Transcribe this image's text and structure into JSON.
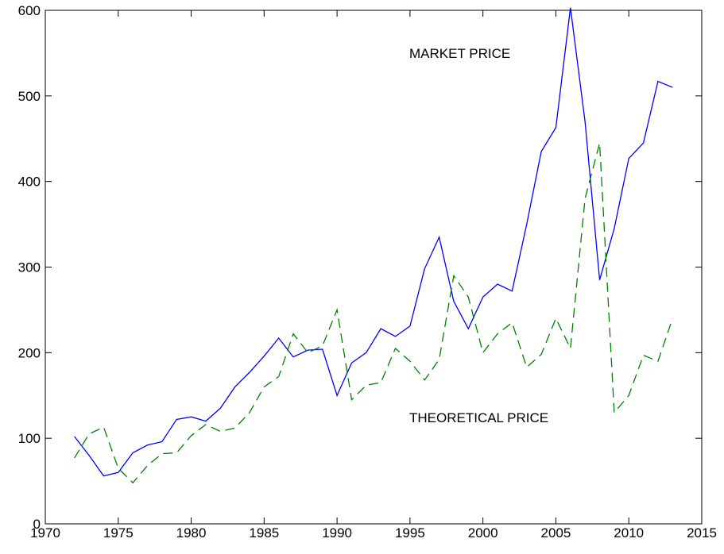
{
  "chart_data": {
    "type": "line",
    "x": [
      1972,
      1973,
      1974,
      1975,
      1976,
      1977,
      1978,
      1979,
      1980,
      1981,
      1982,
      1983,
      1984,
      1985,
      1986,
      1987,
      1988,
      1989,
      1990,
      1991,
      1992,
      1993,
      1994,
      1995,
      1996,
      1997,
      1998,
      1999,
      2000,
      2001,
      2002,
      2003,
      2004,
      2005,
      2006,
      2007,
      2008,
      2009,
      2010,
      2011,
      2012,
      2013
    ],
    "series": [
      {
        "name": "MARKET PRICE",
        "color": "#0000ff",
        "dash": false,
        "values": [
          102,
          80,
          56,
          60,
          83,
          92,
          96,
          122,
          125,
          120,
          135,
          160,
          177,
          196,
          217,
          195,
          203,
          204,
          150,
          188,
          200,
          228,
          219,
          231,
          298,
          335,
          260,
          228,
          265,
          280,
          272,
          350,
          435,
          463,
          603,
          470,
          285,
          345,
          427,
          445,
          517,
          510
        ]
      },
      {
        "name": "THEORETICAL PRICE",
        "color": "#008000",
        "dash": true,
        "values": [
          77,
          105,
          113,
          65,
          48,
          68,
          82,
          83,
          103,
          116,
          108,
          112,
          130,
          160,
          172,
          222,
          200,
          208,
          250,
          145,
          162,
          165,
          205,
          190,
          168,
          192,
          290,
          265,
          200,
          222,
          235,
          183,
          198,
          240,
          205,
          380,
          445,
          130,
          150,
          197,
          190,
          240
        ]
      }
    ],
    "xlim": [
      1970,
      2015
    ],
    "xticks": [
      1970,
      1975,
      1980,
      1985,
      1990,
      1995,
      2000,
      2005,
      2010,
      2015
    ],
    "ylim": [
      0,
      600
    ],
    "yticks": [
      0,
      100,
      200,
      300,
      400,
      500,
      600
    ],
    "grid": false
  }
}
